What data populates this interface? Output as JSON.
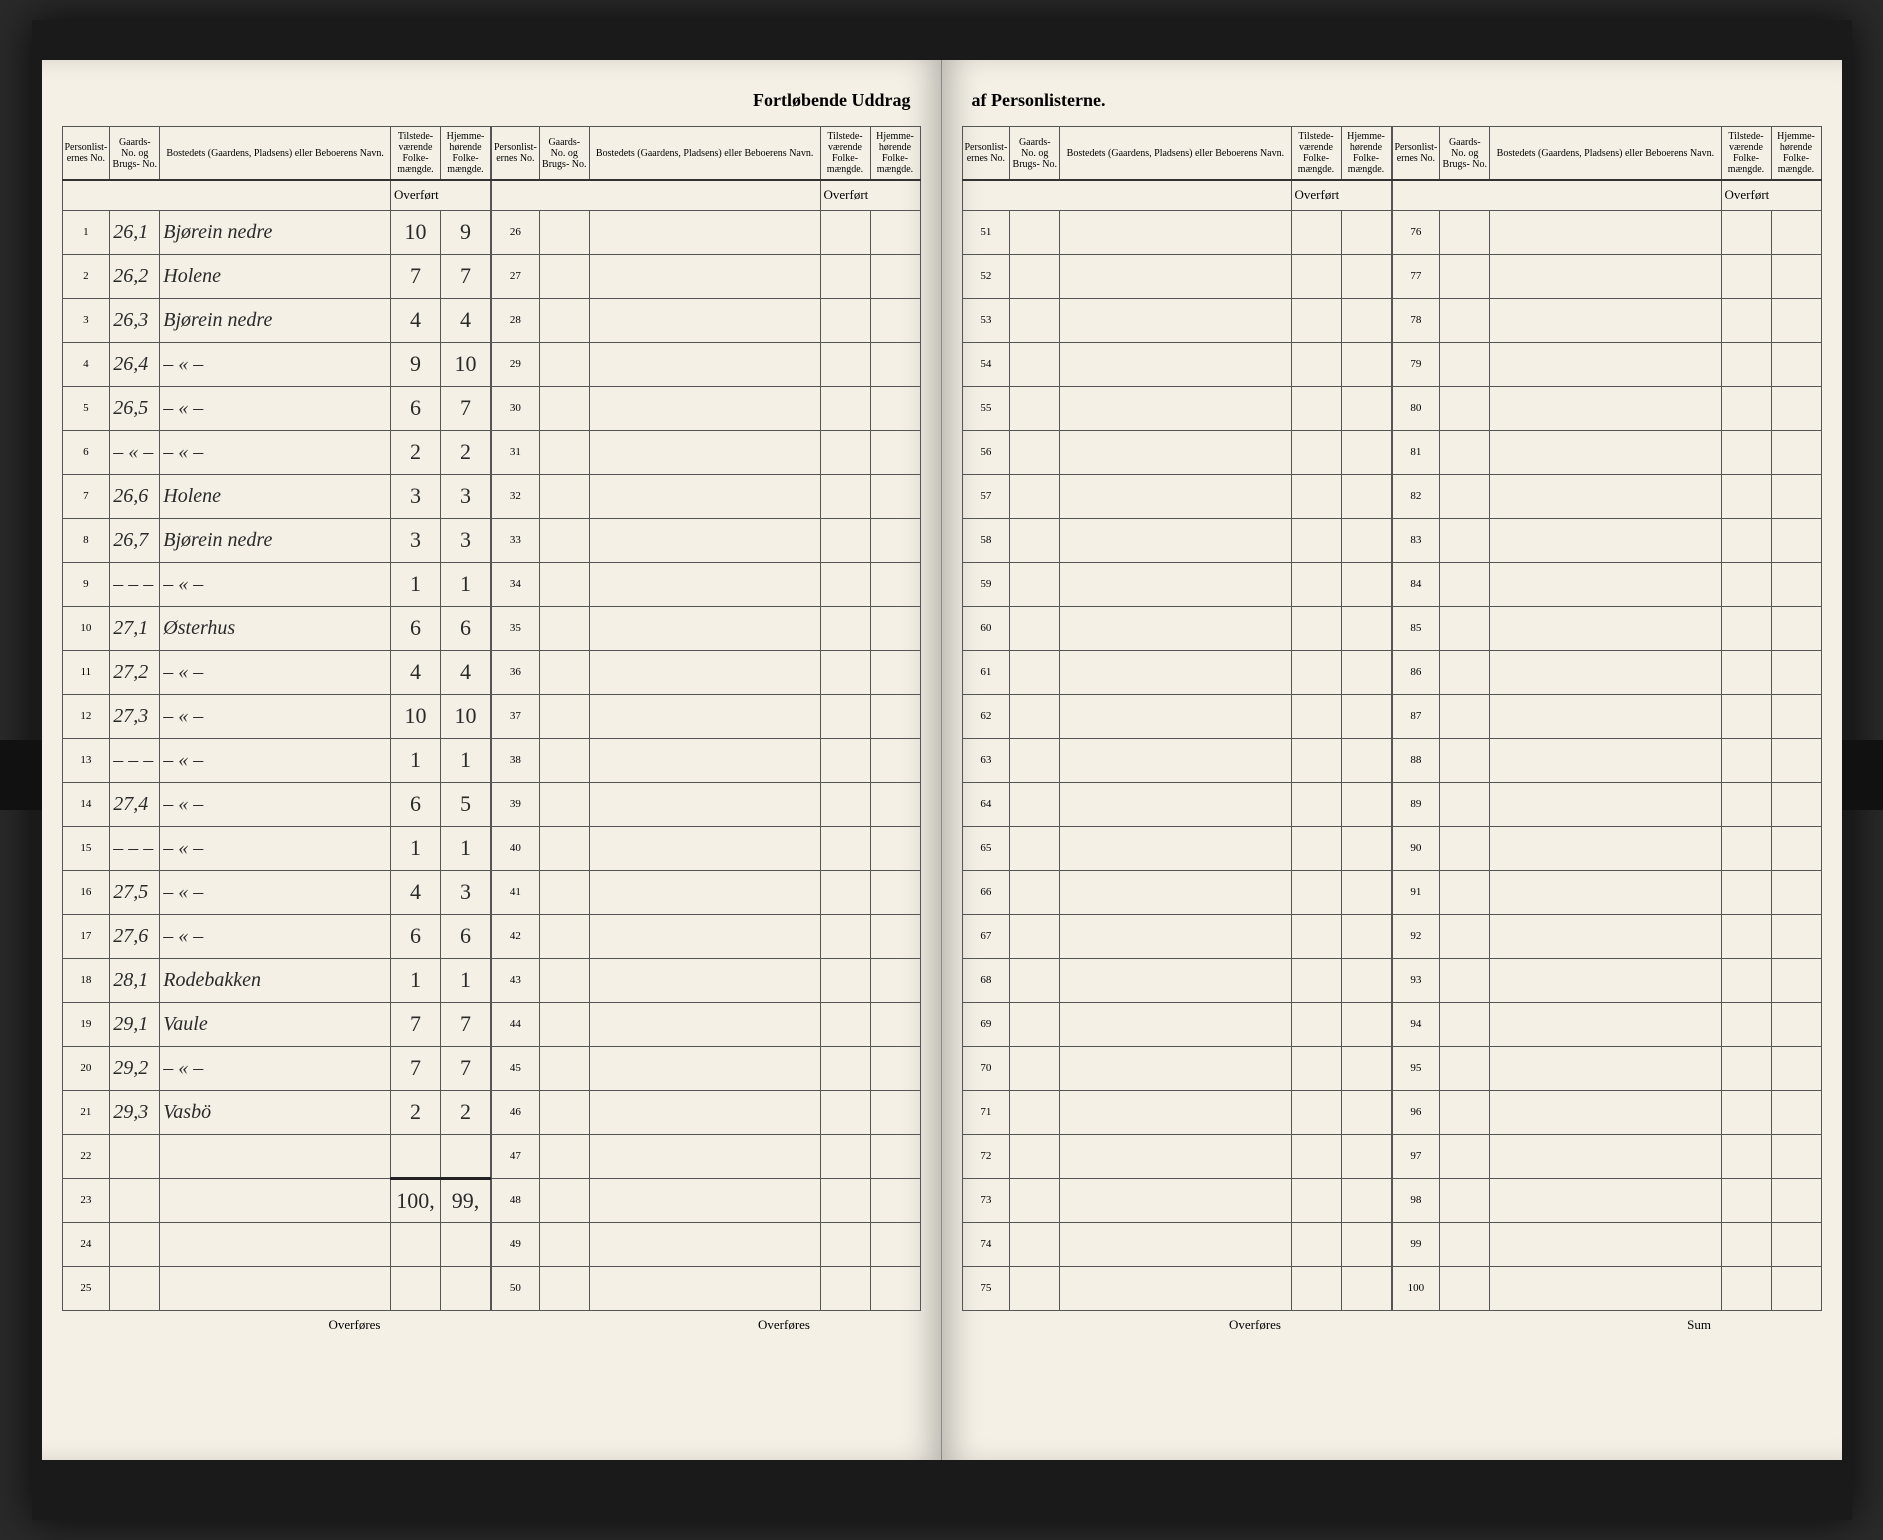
{
  "title_left": "Fortløbende Uddrag",
  "title_right": "af Personlisterne.",
  "headers": {
    "personlist_no": "Personlist-\nernes No.",
    "gaards_no": "Gaards-\nNo.\nog\nBrugs-\nNo.",
    "bosted": "Bostedets (Gaardens, Pladsens) eller\nBeboerens Navn.",
    "tilstede": "Tilstede-\nværende\nFolke-\nmængde.",
    "hjemme": "Hjemme-\nhørende\nFolke-\nmængde."
  },
  "overfort": "Overført",
  "overfores": "Overføres",
  "sum": "Sum",
  "rows_A": [
    {
      "no": "1",
      "gno": "26,1",
      "name": "Bjørein nedre",
      "til": "10",
      "hjem": "9"
    },
    {
      "no": "2",
      "gno": "26,2",
      "name": "Holene",
      "til": "7",
      "hjem": "7"
    },
    {
      "no": "3",
      "gno": "26,3",
      "name": "Bjørein nedre",
      "til": "4",
      "hjem": "4"
    },
    {
      "no": "4",
      "gno": "26,4",
      "name": "– « –",
      "til": "9",
      "hjem": "10"
    },
    {
      "no": "5",
      "gno": "26,5",
      "name": "– « –",
      "til": "6",
      "hjem": "7"
    },
    {
      "no": "6",
      "gno": "– « –",
      "name": "– « –",
      "til": "2",
      "hjem": "2"
    },
    {
      "no": "7",
      "gno": "26,6",
      "name": "Holene",
      "til": "3",
      "hjem": "3"
    },
    {
      "no": "8",
      "gno": "26,7",
      "name": "Bjørein nedre",
      "til": "3",
      "hjem": "3"
    },
    {
      "no": "9",
      "gno": "– – –",
      "name": "– « –",
      "til": "1",
      "hjem": "1"
    },
    {
      "no": "10",
      "gno": "27,1",
      "name": "Østerhus",
      "til": "6",
      "hjem": "6"
    },
    {
      "no": "11",
      "gno": "27,2",
      "name": "– « –",
      "til": "4",
      "hjem": "4"
    },
    {
      "no": "12",
      "gno": "27,3",
      "name": "– « –",
      "til": "10",
      "hjem": "10"
    },
    {
      "no": "13",
      "gno": "– – –",
      "name": "– « –",
      "til": "1",
      "hjem": "1"
    },
    {
      "no": "14",
      "gno": "27,4",
      "name": "– « –",
      "til": "6",
      "hjem": "5"
    },
    {
      "no": "15",
      "gno": "– – –",
      "name": "– « –",
      "til": "1",
      "hjem": "1"
    },
    {
      "no": "16",
      "gno": "27,5",
      "name": "– « –",
      "til": "4",
      "hjem": "3"
    },
    {
      "no": "17",
      "gno": "27,6",
      "name": "– « –",
      "til": "6",
      "hjem": "6"
    },
    {
      "no": "18",
      "gno": "28,1",
      "name": "Rodebakken",
      "til": "1",
      "hjem": "1"
    },
    {
      "no": "19",
      "gno": "29,1",
      "name": "Vaule",
      "til": "7",
      "hjem": "7"
    },
    {
      "no": "20",
      "gno": "29,2",
      "name": "– « –",
      "til": "7",
      "hjem": "7"
    },
    {
      "no": "21",
      "gno": "29,3",
      "name": "Vasbö",
      "til": "2",
      "hjem": "2"
    },
    {
      "no": "22",
      "gno": "",
      "name": "",
      "til": "",
      "hjem": ""
    },
    {
      "no": "23",
      "gno": "",
      "name": "",
      "til": "100,",
      "hjem": "99,",
      "sumline": true
    },
    {
      "no": "24",
      "gno": "",
      "name": "",
      "til": "",
      "hjem": ""
    },
    {
      "no": "25",
      "gno": "",
      "name": "",
      "til": "",
      "hjem": ""
    }
  ],
  "rows_B_start": 26,
  "rows_C_start": 51,
  "rows_D_start": 76
}
